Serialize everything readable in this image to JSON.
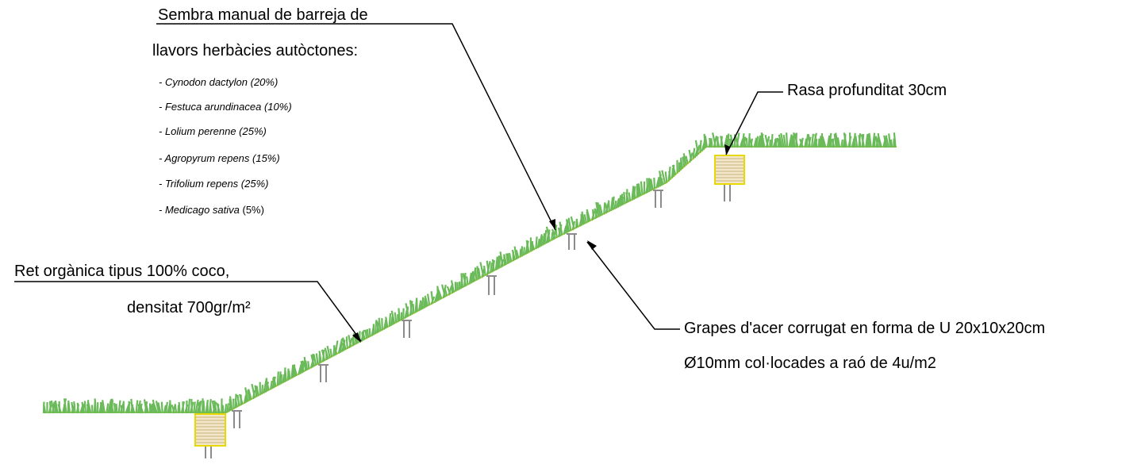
{
  "seeding_label": {
    "line1": "Sembra manual de barreja de",
    "line2": "llavors herbàcies autòctones:"
  },
  "species_list": [
    {
      "name": "- Cynodon dactylon (20%)",
      "pct": ""
    },
    {
      "name": "- Festuca arundinacea (10%)",
      "pct": ""
    },
    {
      "name": "- Lolium perenne (25%)",
      "pct": ""
    },
    {
      "name": "- Agropyrum repens (15%)",
      "pct": ""
    },
    {
      "name": "- Trifolium repens (25%)",
      "pct": ""
    },
    {
      "name": "- Medicago sativa",
      "pct": " (5%)"
    }
  ],
  "trench_label": "Rasa profunditat 30cm",
  "net_label": {
    "line1": "Ret orgànica tipus 100% coco,",
    "line2": "densitat 700gr/m²"
  },
  "staples_label": {
    "line1": "Grapes d'acer corrugat en forma de U 20x10x20cm",
    "line2": "Ø10mm col·locades a raó de 4u/m2"
  },
  "colors": {
    "grass": "#6aba5a",
    "net": "#e6d800",
    "trench_fill": "#f3e7c9",
    "trench_lines": "#c9b27a",
    "staple": "#8c8c8c",
    "leader": "#000000"
  }
}
